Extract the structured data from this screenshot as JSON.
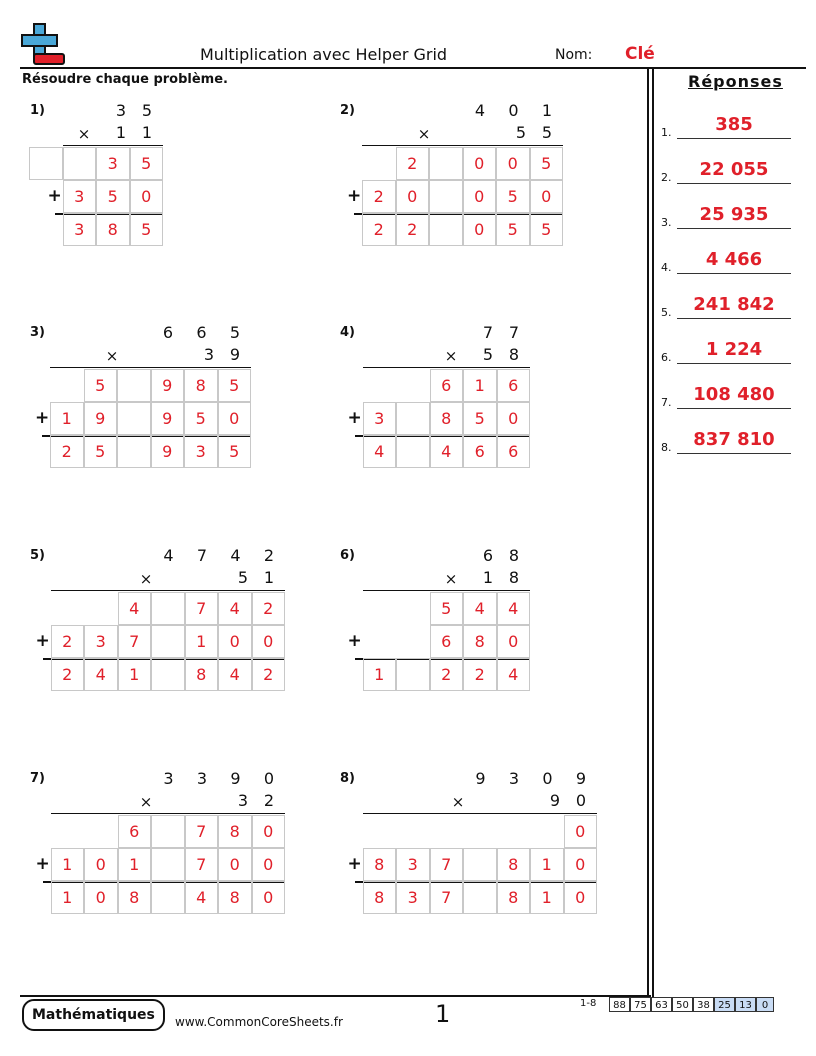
{
  "header": {
    "title": "Multiplication avec Helper Grid",
    "nom_label": "Nom:",
    "nom_value": "Clé",
    "logo_icon": "plus-minus-blocks-icon"
  },
  "instructions": "Résoudre chaque problème.",
  "answers": {
    "title": "Réponses",
    "items": [
      {
        "num": "1.",
        "value": "385"
      },
      {
        "num": "2.",
        "value": "22 055"
      },
      {
        "num": "3.",
        "value": "25 935"
      },
      {
        "num": "4.",
        "value": "4 466"
      },
      {
        "num": "5.",
        "value": "241 842"
      },
      {
        "num": "6.",
        "value": "1 224"
      },
      {
        "num": "7.",
        "value": "108 480"
      },
      {
        "num": "8.",
        "value": "837 810"
      }
    ]
  },
  "problems": [
    {
      "label": "1)",
      "top": [
        "3",
        "5"
      ],
      "bottom": [
        "1",
        "1"
      ],
      "rows": [
        [
          "",
          "",
          "3",
          "5"
        ],
        [
          "3",
          "5",
          "0"
        ],
        [
          "3",
          "8",
          "5"
        ]
      ]
    },
    {
      "label": "2)",
      "top": [
        "4",
        "0",
        "1"
      ],
      "bottom": [
        "5",
        "5"
      ],
      "rows": [
        [
          "2",
          "",
          "0",
          "0",
          "5"
        ],
        [
          "2",
          "0",
          "",
          "0",
          "5",
          "0"
        ],
        [
          "2",
          "2",
          "",
          "0",
          "5",
          "5"
        ]
      ]
    },
    {
      "label": "3)",
      "top": [
        "6",
        "6",
        "5"
      ],
      "bottom": [
        "3",
        "9"
      ],
      "rows": [
        [
          "5",
          "",
          "9",
          "8",
          "5"
        ],
        [
          "1",
          "9",
          "",
          "9",
          "5",
          "0"
        ],
        [
          "2",
          "5",
          "",
          "9",
          "3",
          "5"
        ]
      ]
    },
    {
      "label": "4)",
      "top": [
        "7",
        "7"
      ],
      "bottom": [
        "5",
        "8"
      ],
      "rows": [
        [
          "6",
          "1",
          "6"
        ],
        [
          "3",
          "",
          "8",
          "5",
          "0"
        ],
        [
          "4",
          "",
          "4",
          "6",
          "6"
        ]
      ]
    },
    {
      "label": "5)",
      "top": [
        "4",
        "7",
        "4",
        "2"
      ],
      "bottom": [
        "5",
        "1"
      ],
      "rows": [
        [
          "4",
          "",
          "7",
          "4",
          "2"
        ],
        [
          "2",
          "3",
          "7",
          "",
          "1",
          "0",
          "0"
        ],
        [
          "2",
          "4",
          "1",
          "",
          "8",
          "4",
          "2"
        ]
      ]
    },
    {
      "label": "6)",
      "top": [
        "6",
        "8"
      ],
      "bottom": [
        "1",
        "8"
      ],
      "rows": [
        [
          "5",
          "4",
          "4"
        ],
        [
          "6",
          "8",
          "0"
        ],
        [
          "1",
          "",
          "2",
          "2",
          "4"
        ]
      ]
    },
    {
      "label": "7)",
      "top": [
        "3",
        "3",
        "9",
        "0"
      ],
      "bottom": [
        "3",
        "2"
      ],
      "rows": [
        [
          "6",
          "",
          "7",
          "8",
          "0"
        ],
        [
          "1",
          "0",
          "1",
          "",
          "7",
          "0",
          "0"
        ],
        [
          "1",
          "0",
          "8",
          "",
          "4",
          "8",
          "0"
        ]
      ]
    },
    {
      "label": "8)",
      "top": [
        "9",
        "3",
        "0",
        "9"
      ],
      "bottom": [
        "9",
        "0"
      ],
      "rows": [
        [
          "0"
        ],
        [
          "8",
          "3",
          "7",
          "",
          "8",
          "1",
          "0"
        ],
        [
          "8",
          "3",
          "7",
          "",
          "8",
          "1",
          "0"
        ]
      ]
    }
  ],
  "footer": {
    "logo_text": "Mathématiques",
    "url": "www.CommonCoreSheets.fr",
    "page_number": "1",
    "scale_label": "1-8",
    "scale_values": [
      "88",
      "75",
      "63",
      "50",
      "38",
      "25",
      "13",
      "0"
    ]
  },
  "colors": {
    "answer_red": "#e0202a",
    "scale_highlight": "#c9dcf5"
  }
}
